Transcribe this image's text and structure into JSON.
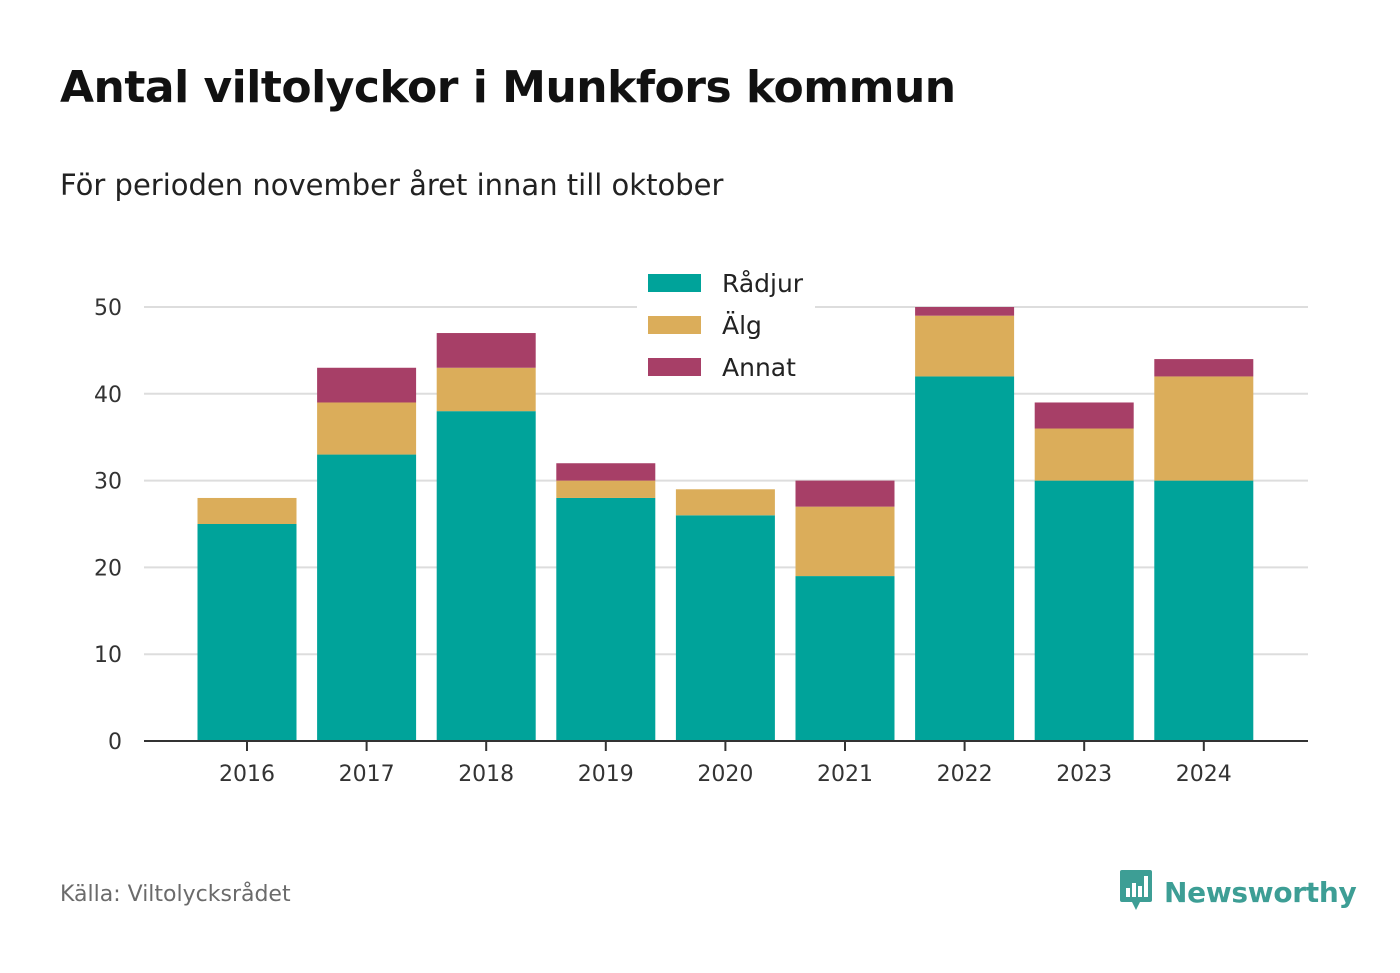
{
  "title": "Antal viltolyckor i Munkfors kommun",
  "subtitle": "För perioden november året innan till oktober",
  "source": "Källa: Viltolycksrådet",
  "brand": {
    "name": "Newsworthy",
    "icon": "newsworthy-logo-icon",
    "color": "#3d9e95"
  },
  "chart_data": {
    "type": "bar",
    "stacked": true,
    "categories": [
      "2016",
      "2017",
      "2018",
      "2019",
      "2020",
      "2021",
      "2022",
      "2023",
      "2024"
    ],
    "series": [
      {
        "name": "Rådjur",
        "color": "#00a39a",
        "values": [
          25,
          33,
          38,
          28,
          26,
          19,
          42,
          30,
          30
        ]
      },
      {
        "name": "Älg",
        "color": "#dbad5a",
        "values": [
          3,
          6,
          5,
          2,
          3,
          8,
          7,
          6,
          12
        ]
      },
      {
        "name": "Annat",
        "color": "#a73f67",
        "values": [
          0,
          4,
          4,
          2,
          0,
          3,
          1,
          3,
          2
        ]
      }
    ],
    "ylim": [
      0,
      50
    ],
    "yticks": [
      "0",
      "10",
      "20",
      "30",
      "40",
      "50"
    ],
    "grid": true,
    "legend": "top-center",
    "xlabel": "",
    "ylabel": ""
  }
}
